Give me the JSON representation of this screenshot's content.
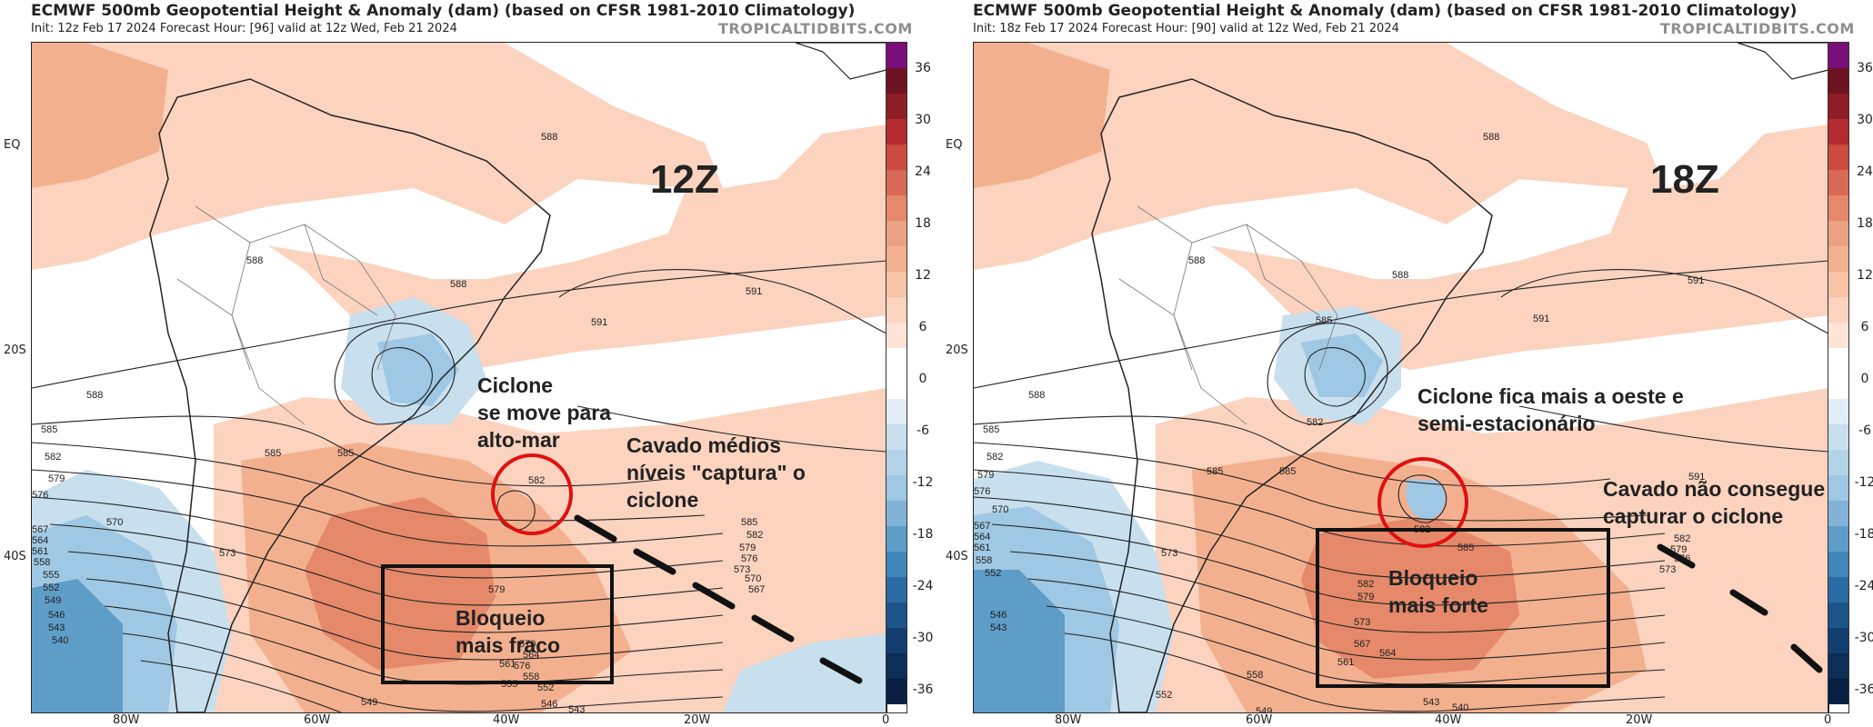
{
  "panels": [
    {
      "title": "ECMWF 500mb Geopotential Height & Anomaly (dam) (based on CFSR 1981-2010 Climatology)",
      "subtitle": "Init: 12z Feb 17 2024   Forecast Hour: [96]   valid at 12z Wed, Feb 21 2024",
      "brand": "TROPICALTIDBITS.COM",
      "time_label": "12Z",
      "annotations": [
        "Ciclone",
        "se move para",
        "alto-mar",
        "Cavado médios",
        "níveis \"captura\" o",
        "ciclone",
        "Bloqueio",
        "mais fraco"
      ]
    },
    {
      "title": "ECMWF 500mb Geopotential Height & Anomaly (dam) (based on CFSR 1981-2010 Climatology)",
      "subtitle": "Init: 18z Feb 17 2024   Forecast Hour: [90]   valid at 12z Wed, Feb 21 2024",
      "brand": "TROPICALTIDBITS.COM",
      "time_label": "18Z",
      "annotations": [
        "Ciclone fica mais a oeste e",
        "semi-estacionário",
        "Cavado não consegue",
        "capturar o ciclone",
        "Bloqueio",
        "mais forte"
      ]
    }
  ],
  "lat_labels": [
    "EQ",
    "20S",
    "40S"
  ],
  "lon_labels": [
    "80W",
    "60W",
    "40W",
    "20W",
    "0"
  ],
  "colorbar_ticks": [
    "36",
    "30",
    "24",
    "18",
    "12",
    "6",
    "0",
    "-6",
    "-12",
    "-18",
    "-24",
    "-30",
    "-36"
  ],
  "colors": {
    "anomaly_pos_1": "#fbd3bf",
    "anomaly_pos_2": "#f3b08f",
    "anomaly_pos_3": "#e5896a",
    "anomaly_neg_1": "#c8dfee",
    "anomaly_neg_2": "#9ec8e3",
    "anomaly_neg_3": "#5e9dc8",
    "circle": "#e01010"
  },
  "contours_a": [
    "588",
    "588",
    "588",
    "591",
    "591",
    "588",
    "585",
    "582",
    "579",
    "576",
    "570",
    "567",
    "564",
    "561",
    "558",
    "555",
    "552",
    "549",
    "546",
    "543",
    "540",
    "585",
    "585",
    "573",
    "582",
    "585",
    "582",
    "579",
    "576",
    "573",
    "570",
    "567",
    "579",
    "576",
    "570",
    "564",
    "561",
    "558",
    "555",
    "552",
    "549",
    "546",
    "543"
  ],
  "contours_b": [
    "588",
    "588",
    "588",
    "591",
    "591",
    "588",
    "585",
    "582",
    "579",
    "576",
    "570",
    "567",
    "564",
    "561",
    "558",
    "552",
    "546",
    "543",
    "585",
    "582",
    "585",
    "585",
    "573",
    "582",
    "591",
    "585",
    "582",
    "579",
    "576",
    "573",
    "582",
    "579",
    "573",
    "567",
    "564",
    "561",
    "558",
    "552",
    "549",
    "543",
    "540"
  ]
}
